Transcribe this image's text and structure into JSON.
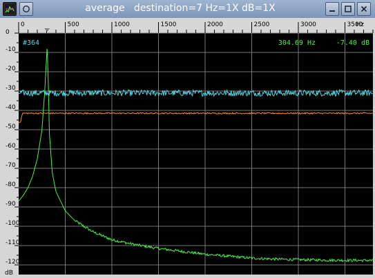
{
  "window": {
    "title": "average   destination=7 Hz=1X dB=1X",
    "app_icon": "spectrum-app-icon",
    "buttons": [
      "menu",
      "minimize",
      "maximize",
      "close"
    ]
  },
  "readouts": {
    "frame": "#364",
    "freq": "304.69 Hz",
    "level": "-7.40 dB"
  },
  "chart_data": {
    "type": "line",
    "title": "",
    "xlabel": "Hz",
    "ylabel": "dB",
    "xlim": [
      0,
      3800
    ],
    "ylim": [
      -125,
      0
    ],
    "x_ticks": [
      0,
      500,
      1000,
      1500,
      2000,
      2500,
      3000,
      3500
    ],
    "x_tick_labels": [
      "0",
      "500",
      "1000",
      "1500",
      "2000",
      "2500",
      "3000",
      "3500"
    ],
    "y_ticks": [
      0,
      -10,
      -20,
      -30,
      -40,
      -50,
      -60,
      -70,
      -80,
      -90,
      -100,
      -110,
      -120
    ],
    "y_tick_labels": [
      "0",
      "-10",
      "-20",
      "-30",
      "-40",
      "-50",
      "-60",
      "-70",
      "-80",
      "-90",
      "-100",
      "-110",
      "-120"
    ],
    "grid": true,
    "marker_freq": 304.69,
    "colors": {
      "background": "#000000",
      "grid": "#7a7a7a",
      "peak_spectrum": "#4ef04e",
      "noise_floor": "#56d8e4",
      "average": "#f0902a",
      "readout_frame": "#5ad8e0",
      "readout_values": "#4ef04e"
    },
    "series": [
      {
        "key": "peak_spectrum",
        "x": [
          0,
          50,
          100,
          150,
          200,
          250,
          280,
          300,
          305,
          315,
          330,
          360,
          400,
          500,
          600,
          800,
          1000,
          1250,
          1500,
          1750,
          2000,
          2250,
          2500,
          2750,
          3000,
          3250,
          3500,
          3800
        ],
        "values": [
          -87,
          -84,
          -80,
          -74,
          -65,
          -50,
          -30,
          -12,
          -7.4,
          -20,
          -52,
          -72,
          -82,
          -92,
          -97,
          -103,
          -107,
          -109.5,
          -111.5,
          -113,
          -114.5,
          -115.5,
          -116.5,
          -117,
          -117.3,
          -117.5,
          -117.6,
          -117.7
        ]
      },
      {
        "key": "noise_floor",
        "x": [
          0,
          3800
        ],
        "values": [
          -31,
          -31
        ]
      },
      {
        "key": "average",
        "x": [
          0,
          20,
          40,
          3800
        ],
        "values": [
          -46,
          -46,
          -41.5,
          -41.5
        ]
      }
    ]
  }
}
